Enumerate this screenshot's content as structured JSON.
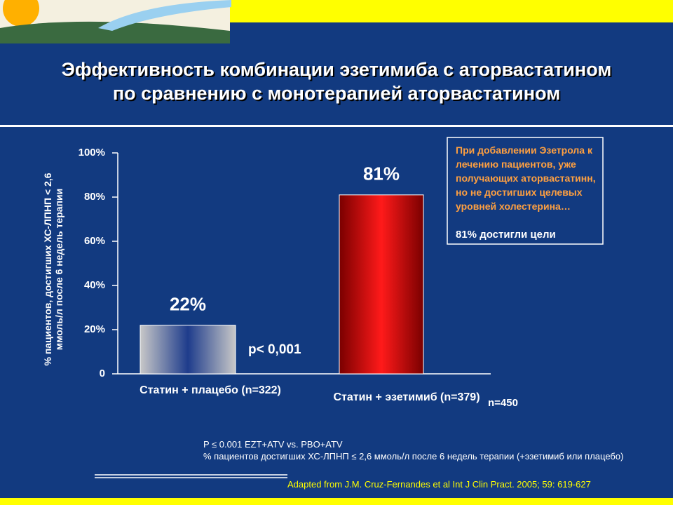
{
  "header": {
    "title_lines": [
      "Эффективность комбинации эзетимиба с аторвастатином",
      "по сравнению с монотерапией аторвастатином"
    ]
  },
  "chart_data": {
    "type": "bar",
    "y_axis_label": "% пациентов, достигших ХС-ЛПНП < 2,6 ммоль/л после 6 недель терапии",
    "categories": [
      "Статин + плацебо (n=322)",
      "Статин + эзетимиб (n=379)"
    ],
    "values": [
      22,
      81
    ],
    "value_labels": [
      "22%",
      "81%"
    ],
    "colors": [
      [
        "#c8c8c8",
        "#1e3c8c",
        "#c8c8c8"
      ],
      [
        "#7a0000",
        "#ff1a1a",
        "#7a0000"
      ]
    ],
    "ylim": [
      0,
      100
    ],
    "yticks": [
      0,
      {
        "value": 20,
        "label": "20%"
      },
      {
        "value": 40,
        "label": "40%"
      },
      {
        "value": 60,
        "label": "60%"
      },
      {
        "value": 80,
        "label": "80%"
      },
      {
        "value": 100,
        "label": "100%"
      }
    ],
    "annotations": [
      "p< 0,001",
      "n=450"
    ],
    "callout": {
      "text": "При добавлении Эзетрола к лечению пациентов, уже получающих аторвастатинн, но не достигших целевых уровней холестерина…",
      "result": "81% достигли цели"
    }
  },
  "footnotes": [
    "P ≤ 0.001 EZT+ATV vs. PBO+ATV",
    "% пациентов достигших ХС-ЛПНП ≤ 2,6 ммоль/л после 6 недель терапии (+эзетимиб или плацебо)"
  ],
  "source": "Adapted from J.M. Cruz-Fernandes et al Int J Clin Pract. 2005; 59: 619-627"
}
